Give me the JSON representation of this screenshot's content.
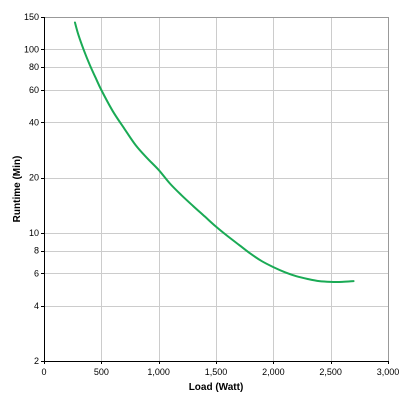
{
  "chart_data": {
    "type": "line",
    "title": "",
    "xlabel": "Load (Watt)",
    "ylabel": "Runtime (Min)",
    "xlim": [
      0,
      3000
    ],
    "ylim": [
      2,
      150
    ],
    "y_scale": "log",
    "grid": true,
    "legend": "none",
    "x_ticks": [
      0,
      500,
      1000,
      1500,
      2000,
      2500,
      3000
    ],
    "x_tick_labels": [
      "0",
      "500",
      "1,000",
      "1,500",
      "2,000",
      "2,500",
      "3,000"
    ],
    "y_ticks": [
      2,
      4,
      6,
      8,
      10,
      20,
      40,
      60,
      80,
      100,
      150
    ],
    "y_tick_labels": [
      "2",
      "4",
      "6",
      "8",
      "10",
      "20",
      "40",
      "60",
      "80",
      "100",
      "150"
    ],
    "series": [
      {
        "color": "#1aaa55",
        "x": [
          270,
          300,
          350,
          400,
          450,
          500,
          600,
          700,
          800,
          900,
          1000,
          1100,
          1200,
          1300,
          1400,
          1500,
          1600,
          1700,
          1800,
          1900,
          2000,
          2100,
          2200,
          2300,
          2400,
          2500,
          2600,
          2700
        ],
        "y": [
          140,
          120,
          98,
          82,
          70,
          60,
          46,
          37,
          30,
          25.5,
          22,
          18.5,
          16,
          14,
          12.3,
          10.8,
          9.6,
          8.6,
          7.7,
          7.0,
          6.5,
          6.1,
          5.8,
          5.6,
          5.45,
          5.4,
          5.4,
          5.45
        ]
      }
    ]
  },
  "colors": {
    "grid": "#cccccc",
    "axis": "#000000",
    "line": "#1aaa55"
  }
}
